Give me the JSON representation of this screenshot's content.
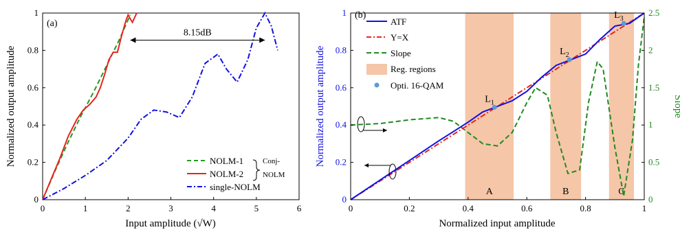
{
  "chart_data": [
    {
      "panel_label": "(a)",
      "type": "line",
      "xlabel": "Input amplitude (√W)",
      "ylabel": "Normalized output amplitude",
      "xlim": [
        0,
        6
      ],
      "ylim": [
        0,
        1
      ],
      "xticks": [
        "0",
        "1",
        "2",
        "3",
        "4",
        "5",
        "6"
      ],
      "yticks": [
        "0",
        "0.2",
        "0.4",
        "0.6",
        "0.8",
        "1"
      ],
      "grid": false,
      "legend_position": "bottom-right",
      "legend_group_label": "Conj-",
      "legend_group_sublabel": "NOLM",
      "annotation": {
        "text": "8.15dB",
        "from_x": 2.05,
        "to_x": 5.2,
        "y": 0.855
      },
      "series": [
        {
          "name": "NOLM-1",
          "color": "#1f9a1f",
          "style": "dashed",
          "x": [
            0,
            0.3,
            0.6,
            0.9,
            1.2,
            1.5,
            1.8,
            2.05
          ],
          "y": [
            0,
            0.16,
            0.31,
            0.45,
            0.58,
            0.72,
            0.86,
            0.99
          ]
        },
        {
          "name": "NOLM-2",
          "color": "#e8231e",
          "style": "solid",
          "x": [
            0,
            0.2,
            0.4,
            0.6,
            0.8,
            0.95,
            1.1,
            1.25,
            1.35,
            1.45,
            1.55,
            1.65,
            1.75,
            1.85,
            1.95,
            2.0,
            2.05,
            2.1,
            2.2
          ],
          "y": [
            0,
            0.11,
            0.22,
            0.34,
            0.43,
            0.48,
            0.51,
            0.55,
            0.6,
            0.67,
            0.75,
            0.79,
            0.79,
            0.88,
            0.96,
            0.99,
            0.97,
            0.95,
            1.0
          ]
        },
        {
          "name": "single-NOLM",
          "color": "#1010e0",
          "style": "dashdot",
          "x": [
            0,
            0.5,
            1.0,
            1.5,
            2.0,
            2.3,
            2.6,
            2.9,
            3.2,
            3.5,
            3.8,
            4.1,
            4.3,
            4.55,
            4.8,
            5.0,
            5.2,
            5.35,
            5.5
          ],
          "y": [
            0,
            0.06,
            0.13,
            0.21,
            0.33,
            0.43,
            0.48,
            0.47,
            0.44,
            0.55,
            0.73,
            0.78,
            0.7,
            0.63,
            0.75,
            0.92,
            1.0,
            0.93,
            0.8
          ]
        }
      ]
    },
    {
      "panel_label": "(b)",
      "type": "line",
      "xlabel": "Normalized input amplitude",
      "ylabel": "Normalized output amplitude",
      "y2label": "Slope",
      "xlim": [
        0,
        1
      ],
      "ylim": [
        0,
        1
      ],
      "y2lim": [
        0,
        2.5
      ],
      "xticks": [
        "0",
        "0.2",
        "0.4",
        "0.6",
        "0.8",
        "1"
      ],
      "yticks": [
        "0",
        "0.2",
        "0.4",
        "0.6",
        "0.8",
        "1"
      ],
      "y2ticks": [
        "0",
        "0.5",
        "1",
        "1.5",
        "2",
        "2.5"
      ],
      "grid": false,
      "legend_position": "top-left",
      "regions": [
        {
          "label": "A",
          "x0": 0.39,
          "x1": 0.555
        },
        {
          "label": "B",
          "x0": 0.68,
          "x1": 0.785
        },
        {
          "label": "C",
          "x0": 0.88,
          "x1": 0.965
        }
      ],
      "points": {
        "name": "Opti. 16-QAM",
        "color": "#5b9bd5",
        "items": [
          {
            "label": "L",
            "sub": "1",
            "x": 0.49,
            "y": 0.495
          },
          {
            "label": "L",
            "sub": "2",
            "x": 0.745,
            "y": 0.75
          },
          {
            "label": "L",
            "sub": "3",
            "x": 0.93,
            "y": 0.945
          }
        ]
      },
      "series": [
        {
          "name": "ATF",
          "color": "#1010e0",
          "style": "solid",
          "axis": "left",
          "x": [
            0,
            0.1,
            0.2,
            0.3,
            0.35,
            0.4,
            0.45,
            0.5,
            0.55,
            0.6,
            0.65,
            0.7,
            0.75,
            0.8,
            0.85,
            0.9,
            0.95,
            1.0
          ],
          "y": [
            0,
            0.105,
            0.21,
            0.315,
            0.365,
            0.415,
            0.47,
            0.5,
            0.53,
            0.58,
            0.655,
            0.72,
            0.75,
            0.78,
            0.86,
            0.93,
            0.945,
            1.0
          ]
        },
        {
          "name": "Y=X",
          "color": "#e8231e",
          "style": "dashdot",
          "axis": "left",
          "x": [
            0,
            1
          ],
          "y": [
            0,
            1
          ]
        },
        {
          "name": "Slope",
          "color": "#1f8a1f",
          "style": "dashed",
          "axis": "right",
          "x": [
            0,
            0.1,
            0.2,
            0.3,
            0.35,
            0.4,
            0.45,
            0.5,
            0.55,
            0.6,
            0.63,
            0.67,
            0.7,
            0.74,
            0.78,
            0.81,
            0.84,
            0.86,
            0.9,
            0.93,
            0.96,
            0.98,
            1.0
          ],
          "y": [
            1.0,
            1.02,
            1.07,
            1.1,
            1.05,
            0.9,
            0.75,
            0.72,
            0.9,
            1.3,
            1.5,
            1.4,
            0.9,
            0.35,
            0.4,
            1.3,
            1.85,
            1.75,
            0.7,
            0.05,
            0.8,
            1.8,
            2.45
          ]
        }
      ]
    }
  ]
}
